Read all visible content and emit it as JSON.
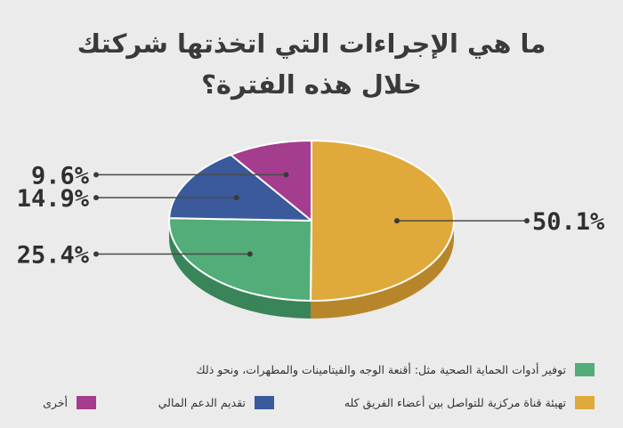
{
  "title": {
    "line1": "ما هي الإجراءات التي اتخذتها شركتك",
    "line2": "خلال هذه الفترة؟"
  },
  "chart_data": {
    "type": "pie",
    "title": "ما هي الإجراءات التي اتخذتها شركتك خلال هذه الفترة؟",
    "legend_position": "bottom",
    "slices": [
      {
        "name": "تهيئة قناة مركزية للتواصل بين أعضاء الفريق كله",
        "value": 50.1,
        "label": "50.1%",
        "color": "#e0a93b",
        "side": "#b8862a"
      },
      {
        "name": "توفير أدوات الحماية الصحية مثل: أقنعة الوجه والفيتامينات والمطهرات، ونحو ذلك",
        "value": 25.4,
        "label": "25.4%",
        "color": "#52ad79",
        "side": "#3a8459"
      },
      {
        "name": "تقديم الدعم المالي",
        "value": 14.9,
        "label": "14.9%",
        "color": "#3a5a9c",
        "side": "#2a4276"
      },
      {
        "name": "أخرى",
        "value": 9.6,
        "label": "9.6%",
        "color": "#a53d8e",
        "side": "#7d2d6b"
      }
    ]
  }
}
